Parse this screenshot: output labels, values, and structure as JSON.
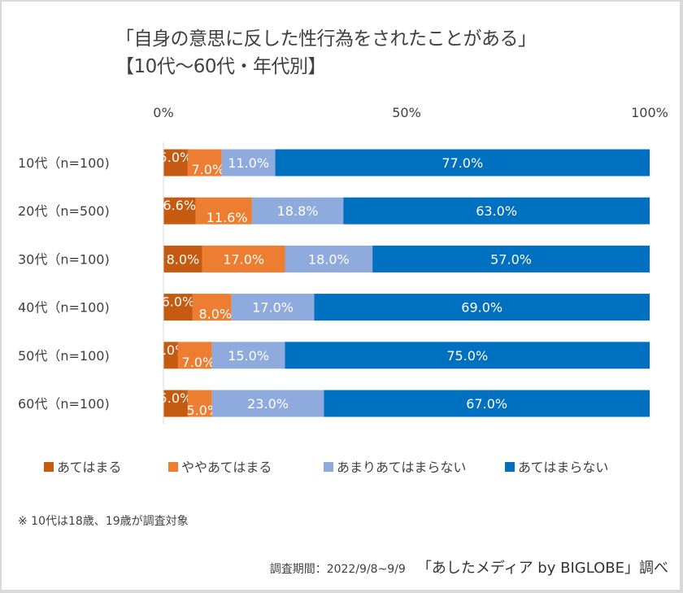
{
  "chart_data": {
    "type": "bar",
    "orientation": "horizontal",
    "stacked": "100%",
    "title": "「自身の意思に反した性行為をされたことがある」",
    "subtitle": "【10代～60代・年代別】",
    "categories": [
      "10代（n=100)",
      "20代（n=500)",
      "30代（n=100)",
      "40代（n=100)",
      "50代（n=100)",
      "60代（n=100)"
    ],
    "xlim": [
      0,
      100
    ],
    "x_ticks": [
      "0%",
      "50%",
      "100%"
    ],
    "grid": false,
    "legend_position": "bottom",
    "series": [
      {
        "name": "あてはまる",
        "color": "#C55A11",
        "values": [
          5.0,
          6.6,
          8.0,
          6.0,
          3.0,
          5.0
        ]
      },
      {
        "name": "ややあてはまる",
        "color": "#ED7D31",
        "values": [
          7.0,
          11.6,
          17.0,
          8.0,
          7.0,
          5.0
        ]
      },
      {
        "name": "あまりあてはまらない",
        "color": "#8FAADC",
        "values": [
          11.0,
          18.8,
          18.0,
          17.0,
          15.0,
          23.0
        ]
      },
      {
        "name": "あてはまらない",
        "color": "#0070C0",
        "values": [
          77.0,
          63.0,
          57.0,
          69.0,
          75.0,
          67.0
        ]
      }
    ]
  },
  "note": "※ 10代は18歳、19歳が調査対象",
  "source": {
    "period": "調査期間：2022/9/8~9/9",
    "org": "「あしたメディア by BIGLOBE」調べ"
  }
}
